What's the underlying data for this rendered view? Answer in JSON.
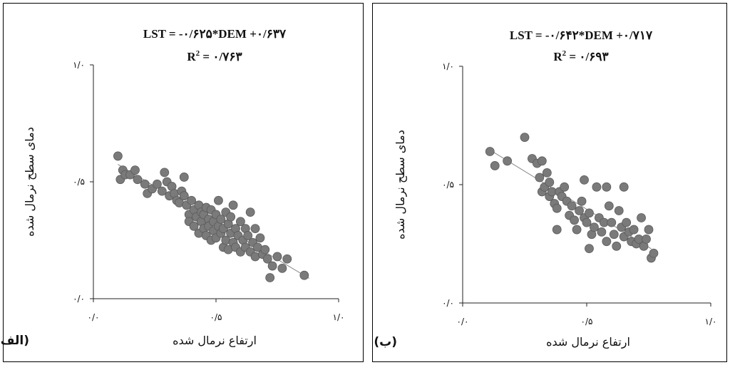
{
  "chart_data": [
    {
      "type": "scatter",
      "panel_label": "(الف)",
      "equation": "LST = -۰/۶۲۵*DEM +۰/۶۳۷",
      "r2_label": "R",
      "r2_sup": "2",
      "r2_value": " = ۰/۷۶۳",
      "xlabel": "ارتفاع نرمال شده",
      "ylabel": "دمای سطح نرمال شده",
      "xlim": [
        0,
        1
      ],
      "ylim": [
        0,
        1
      ],
      "x_ticks": [
        {
          "value": 0,
          "label": "۰/۰"
        },
        {
          "value": 0.5,
          "label": "۰/۵"
        },
        {
          "value": 1,
          "label": "۱/۰"
        }
      ],
      "y_ticks": [
        {
          "value": 0,
          "label": "۰/۰"
        },
        {
          "value": 0.5,
          "label": "۰/۵"
        },
        {
          "value": 1,
          "label": "۱/۰"
        }
      ],
      "trendline": {
        "slope": -0.625,
        "intercept": 0.637,
        "x_range": [
          0.1,
          0.88
        ]
      },
      "points": [
        [
          0.1,
          0.61
        ],
        [
          0.11,
          0.51
        ],
        [
          0.12,
          0.55
        ],
        [
          0.13,
          0.53
        ],
        [
          0.15,
          0.53
        ],
        [
          0.17,
          0.55
        ],
        [
          0.18,
          0.51
        ],
        [
          0.21,
          0.49
        ],
        [
          0.22,
          0.45
        ],
        [
          0.24,
          0.47
        ],
        [
          0.26,
          0.49
        ],
        [
          0.28,
          0.46
        ],
        [
          0.29,
          0.54
        ],
        [
          0.3,
          0.5
        ],
        [
          0.31,
          0.44
        ],
        [
          0.32,
          0.48
        ],
        [
          0.33,
          0.45
        ],
        [
          0.34,
          0.42
        ],
        [
          0.35,
          0.41
        ],
        [
          0.36,
          0.46
        ],
        [
          0.37,
          0.52
        ],
        [
          0.37,
          0.44
        ],
        [
          0.38,
          0.4
        ],
        [
          0.39,
          0.36
        ],
        [
          0.39,
          0.33
        ],
        [
          0.4,
          0.42
        ],
        [
          0.41,
          0.38
        ],
        [
          0.41,
          0.31
        ],
        [
          0.42,
          0.35
        ],
        [
          0.43,
          0.4
        ],
        [
          0.43,
          0.28
        ],
        [
          0.44,
          0.37
        ],
        [
          0.44,
          0.33
        ],
        [
          0.45,
          0.3
        ],
        [
          0.45,
          0.36
        ],
        [
          0.46,
          0.39
        ],
        [
          0.46,
          0.27
        ],
        [
          0.47,
          0.34
        ],
        [
          0.47,
          0.31
        ],
        [
          0.48,
          0.38
        ],
        [
          0.48,
          0.25
        ],
        [
          0.49,
          0.33
        ],
        [
          0.49,
          0.29
        ],
        [
          0.5,
          0.36
        ],
        [
          0.5,
          0.26
        ],
        [
          0.51,
          0.31
        ],
        [
          0.51,
          0.42
        ],
        [
          0.52,
          0.28
        ],
        [
          0.52,
          0.34
        ],
        [
          0.53,
          0.22
        ],
        [
          0.53,
          0.3
        ],
        [
          0.54,
          0.37
        ],
        [
          0.54,
          0.25
        ],
        [
          0.55,
          0.32
        ],
        [
          0.55,
          0.21
        ],
        [
          0.56,
          0.28
        ],
        [
          0.56,
          0.35
        ],
        [
          0.57,
          0.24
        ],
        [
          0.57,
          0.4
        ],
        [
          0.58,
          0.3
        ],
        [
          0.58,
          0.22
        ],
        [
          0.59,
          0.27
        ],
        [
          0.6,
          0.33
        ],
        [
          0.6,
          0.2
        ],
        [
          0.61,
          0.25
        ],
        [
          0.62,
          0.3
        ],
        [
          0.62,
          0.22
        ],
        [
          0.63,
          0.27
        ],
        [
          0.64,
          0.37
        ],
        [
          0.64,
          0.2
        ],
        [
          0.65,
          0.24
        ],
        [
          0.66,
          0.3
        ],
        [
          0.66,
          0.18
        ],
        [
          0.67,
          0.22
        ],
        [
          0.68,
          0.26
        ],
        [
          0.69,
          0.19
        ],
        [
          0.7,
          0.21
        ],
        [
          0.71,
          0.17
        ],
        [
          0.72,
          0.09
        ],
        [
          0.73,
          0.14
        ],
        [
          0.75,
          0.18
        ],
        [
          0.77,
          0.13
        ],
        [
          0.79,
          0.17
        ],
        [
          0.86,
          0.1
        ]
      ]
    },
    {
      "type": "scatter",
      "panel_label": "(ب)",
      "equation": "LST = -۰/۶۴۲*DEM +۰/۷۱۷",
      "r2_label": "R",
      "r2_sup": "2",
      "r2_value": " = ۰/۶۹۳",
      "xlabel": "ارتفاع نرمال شده",
      "ylabel": "دمای سطح نرمال شده",
      "xlim": [
        0,
        1
      ],
      "ylim": [
        0,
        1
      ],
      "x_ticks": [
        {
          "value": 0,
          "label": "۰/۰"
        },
        {
          "value": 0.5,
          "label": "۰/۵"
        },
        {
          "value": 1,
          "label": "۱/۰"
        }
      ],
      "y_ticks": [
        {
          "value": 0,
          "label": "۰/۰"
        },
        {
          "value": 0.5,
          "label": "۰/۵"
        },
        {
          "value": 1,
          "label": "۱/۰"
        }
      ],
      "trendline": {
        "slope": -0.642,
        "intercept": 0.717,
        "x_range": [
          0.1,
          0.76
        ]
      },
      "points": [
        [
          0.11,
          0.64
        ],
        [
          0.13,
          0.58
        ],
        [
          0.18,
          0.6
        ],
        [
          0.25,
          0.7
        ],
        [
          0.28,
          0.61
        ],
        [
          0.3,
          0.59
        ],
        [
          0.31,
          0.53
        ],
        [
          0.32,
          0.6
        ],
        [
          0.32,
          0.47
        ],
        [
          0.33,
          0.49
        ],
        [
          0.34,
          0.55
        ],
        [
          0.35,
          0.51
        ],
        [
          0.35,
          0.45
        ],
        [
          0.36,
          0.47
        ],
        [
          0.37,
          0.42
        ],
        [
          0.38,
          0.4
        ],
        [
          0.38,
          0.31
        ],
        [
          0.39,
          0.47
        ],
        [
          0.4,
          0.45
        ],
        [
          0.41,
          0.49
        ],
        [
          0.42,
          0.43
        ],
        [
          0.43,
          0.37
        ],
        [
          0.44,
          0.41
        ],
        [
          0.45,
          0.35
        ],
        [
          0.46,
          0.31
        ],
        [
          0.47,
          0.39
        ],
        [
          0.48,
          0.43
        ],
        [
          0.49,
          0.36
        ],
        [
          0.49,
          0.52
        ],
        [
          0.5,
          0.34
        ],
        [
          0.51,
          0.38
        ],
        [
          0.51,
          0.23
        ],
        [
          0.52,
          0.29
        ],
        [
          0.53,
          0.32
        ],
        [
          0.54,
          0.49
        ],
        [
          0.55,
          0.36
        ],
        [
          0.56,
          0.3
        ],
        [
          0.57,
          0.34
        ],
        [
          0.58,
          0.49
        ],
        [
          0.58,
          0.26
        ],
        [
          0.59,
          0.41
        ],
        [
          0.6,
          0.34
        ],
        [
          0.61,
          0.29
        ],
        [
          0.62,
          0.24
        ],
        [
          0.63,
          0.39
        ],
        [
          0.64,
          0.32
        ],
        [
          0.65,
          0.49
        ],
        [
          0.65,
          0.28
        ],
        [
          0.66,
          0.34
        ],
        [
          0.67,
          0.3
        ],
        [
          0.68,
          0.26
        ],
        [
          0.69,
          0.31
        ],
        [
          0.7,
          0.25
        ],
        [
          0.71,
          0.27
        ],
        [
          0.72,
          0.36
        ],
        [
          0.73,
          0.24
        ],
        [
          0.74,
          0.27
        ],
        [
          0.75,
          0.31
        ],
        [
          0.76,
          0.19
        ],
        [
          0.77,
          0.21
        ]
      ]
    }
  ],
  "colors": {
    "point": "#7a7a7a",
    "point_edge": "#5a5a5a",
    "axis": "#222222",
    "trendline": "#888888"
  }
}
